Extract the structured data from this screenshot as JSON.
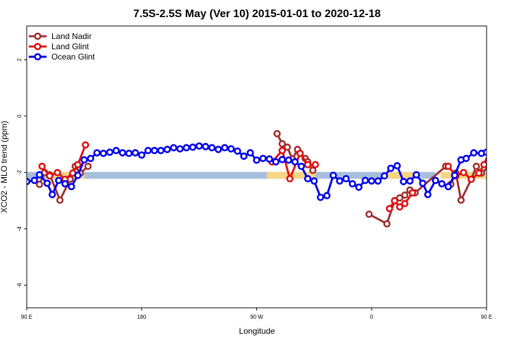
{
  "chart_data": {
    "type": "line",
    "title": "7.5S-2.5S May (Ver 10)   2015-01-01 to 2020-12-18",
    "xlabel": "Longitude",
    "ylabel": "XCO2 - MLO trend (ppm)",
    "x_domain": [
      90,
      450
    ],
    "ylim": [
      -6.8,
      3.2
    ],
    "x_ticks": [
      {
        "value": 90,
        "label": "90 E"
      },
      {
        "value": 180,
        "label": "180"
      },
      {
        "value": 270,
        "label": "90 W"
      },
      {
        "value": 360,
        "label": "0"
      },
      {
        "value": 450,
        "label": "90 E"
      },
      {
        "value": 540,
        "label": "180"
      }
    ],
    "y_ticks": [
      {
        "value": 2,
        "label": "2"
      },
      {
        "value": 0,
        "label": "0"
      },
      {
        "value": -2,
        "label": "-2"
      },
      {
        "value": -4,
        "label": "-4"
      },
      {
        "value": -6,
        "label": "-6"
      }
    ],
    "grid": false,
    "legend_position": "top-left",
    "bands": [
      {
        "name": "ocean",
        "color": "#a7bfdd",
        "y": -2.1,
        "ranges": [
          [
            90,
            410
          ]
        ]
      },
      {
        "name": "land",
        "color": "#f7d583",
        "y": -2.1,
        "ranges": [
          [
            108,
            135
          ],
          [
            278,
            316
          ],
          [
            370,
            395
          ],
          [
            414,
            450
          ]
        ]
      }
    ],
    "series": [
      {
        "name": "Land Nadir",
        "color": "#9e3030",
        "points": [
          [
            100,
            -2.42
          ],
          [
            104,
            -2.0
          ],
          [
            108,
            -2.08
          ],
          [
            116,
            -2.98
          ],
          [
            124,
            -2.24
          ],
          [
            128,
            -1.78
          ],
          [
            132,
            -2.02
          ],
          [
            138,
            -1.78
          ],
          [
            286,
            -0.62
          ],
          [
            290,
            -0.98
          ],
          [
            294,
            -1.1
          ],
          [
            298,
            -1.52
          ],
          [
            302,
            -1.18
          ],
          [
            308,
            -1.5
          ],
          [
            310,
            -1.62
          ],
          [
            314,
            -1.92
          ],
          [
            358,
            -3.48
          ],
          [
            372,
            -3.82
          ],
          [
            378,
            -3.0
          ],
          [
            382,
            -2.9
          ],
          [
            386,
            -2.8
          ],
          [
            390,
            -2.62
          ],
          [
            394,
            -2.72
          ],
          [
            418,
            -1.78
          ],
          [
            422,
            -2.42
          ],
          [
            426,
            -2.02
          ],
          [
            430,
            -2.98
          ],
          [
            438,
            -2.24
          ],
          [
            442,
            -1.78
          ],
          [
            446,
            -2.02
          ],
          [
            452,
            -1.78
          ]
        ],
        "line_segments": [
          [
            0,
            7
          ],
          [
            8,
            15
          ],
          [
            16,
            23
          ],
          [
            24,
            30
          ]
        ]
      },
      {
        "name": "Land Glint",
        "color": "#e01010",
        "points": [
          [
            102,
            -1.78
          ],
          [
            108,
            -2.12
          ],
          [
            114,
            -2.0
          ],
          [
            120,
            -2.24
          ],
          [
            126,
            -2.02
          ],
          [
            130,
            -1.72
          ],
          [
            136,
            -1.02
          ],
          [
            282,
            -1.62
          ],
          [
            290,
            -1.22
          ],
          [
            296,
            -2.22
          ],
          [
            304,
            -1.32
          ],
          [
            310,
            -1.72
          ],
          [
            316,
            -1.72
          ],
          [
            374,
            -3.28
          ],
          [
            378,
            -3.0
          ],
          [
            382,
            -3.22
          ],
          [
            386,
            -3.1
          ],
          [
            392,
            -2.72
          ],
          [
            420,
            -1.78
          ],
          [
            426,
            -2.12
          ],
          [
            432,
            -2.0
          ],
          [
            438,
            -2.24
          ],
          [
            444,
            -2.02
          ],
          [
            448,
            -1.72
          ],
          [
            454,
            -1.02
          ]
        ],
        "line_segments": [
          [
            0,
            6
          ],
          [
            7,
            12
          ],
          [
            13,
            17
          ],
          [
            18,
            24
          ]
        ]
      },
      {
        "name": "Ocean Glint",
        "color": "#0000ee",
        "points": [
          [
            90,
            -2.32
          ],
          [
            96,
            -2.28
          ],
          [
            100,
            -2.08
          ],
          [
            106,
            -2.38
          ],
          [
            110,
            -2.78
          ],
          [
            115,
            -2.28
          ],
          [
            120,
            -2.4
          ],
          [
            125,
            -2.5
          ],
          [
            130,
            -2.1
          ],
          [
            135,
            -1.55
          ],
          [
            140,
            -1.5
          ],
          [
            145,
            -1.3
          ],
          [
            150,
            -1.32
          ],
          [
            155,
            -1.28
          ],
          [
            160,
            -1.22
          ],
          [
            165,
            -1.3
          ],
          [
            170,
            -1.32
          ],
          [
            175,
            -1.3
          ],
          [
            180,
            -1.38
          ],
          [
            185,
            -1.22
          ],
          [
            190,
            -1.22
          ],
          [
            195,
            -1.22
          ],
          [
            200,
            -1.18
          ],
          [
            205,
            -1.12
          ],
          [
            210,
            -1.16
          ],
          [
            215,
            -1.12
          ],
          [
            220,
            -1.1
          ],
          [
            225,
            -1.06
          ],
          [
            230,
            -1.08
          ],
          [
            235,
            -1.12
          ],
          [
            240,
            -1.18
          ],
          [
            245,
            -1.12
          ],
          [
            250,
            -1.16
          ],
          [
            255,
            -1.24
          ],
          [
            260,
            -1.42
          ],
          [
            265,
            -1.3
          ],
          [
            270,
            -1.56
          ],
          [
            275,
            -1.5
          ],
          [
            280,
            -1.52
          ],
          [
            285,
            -1.62
          ],
          [
            290,
            -1.54
          ],
          [
            295,
            -1.56
          ],
          [
            300,
            -1.62
          ],
          [
            305,
            -1.78
          ],
          [
            310,
            -2.22
          ],
          [
            315,
            -2.3
          ],
          [
            320,
            -2.88
          ],
          [
            325,
            -2.82
          ],
          [
            330,
            -2.1
          ],
          [
            335,
            -2.3
          ],
          [
            340,
            -2.22
          ],
          [
            345,
            -2.4
          ],
          [
            350,
            -2.52
          ],
          [
            355,
            -2.28
          ],
          [
            360,
            -2.3
          ],
          [
            365,
            -2.3
          ],
          [
            370,
            -2.12
          ],
          [
            375,
            -1.85
          ],
          [
            380,
            -1.76
          ],
          [
            385,
            -2.32
          ],
          [
            390,
            -2.3
          ],
          [
            395,
            -2.08
          ],
          [
            400,
            -2.38
          ],
          [
            404,
            -2.78
          ],
          [
            410,
            -2.28
          ],
          [
            415,
            -2.4
          ],
          [
            420,
            -2.5
          ],
          [
            425,
            -2.1
          ],
          [
            430,
            -1.55
          ],
          [
            434,
            -1.5
          ],
          [
            440,
            -1.3
          ],
          [
            446,
            -1.32
          ],
          [
            450,
            -1.28
          ],
          [
            455,
            -1.22
          ]
        ],
        "line_segments": [
          [
            0,
            73
          ]
        ]
      }
    ]
  }
}
